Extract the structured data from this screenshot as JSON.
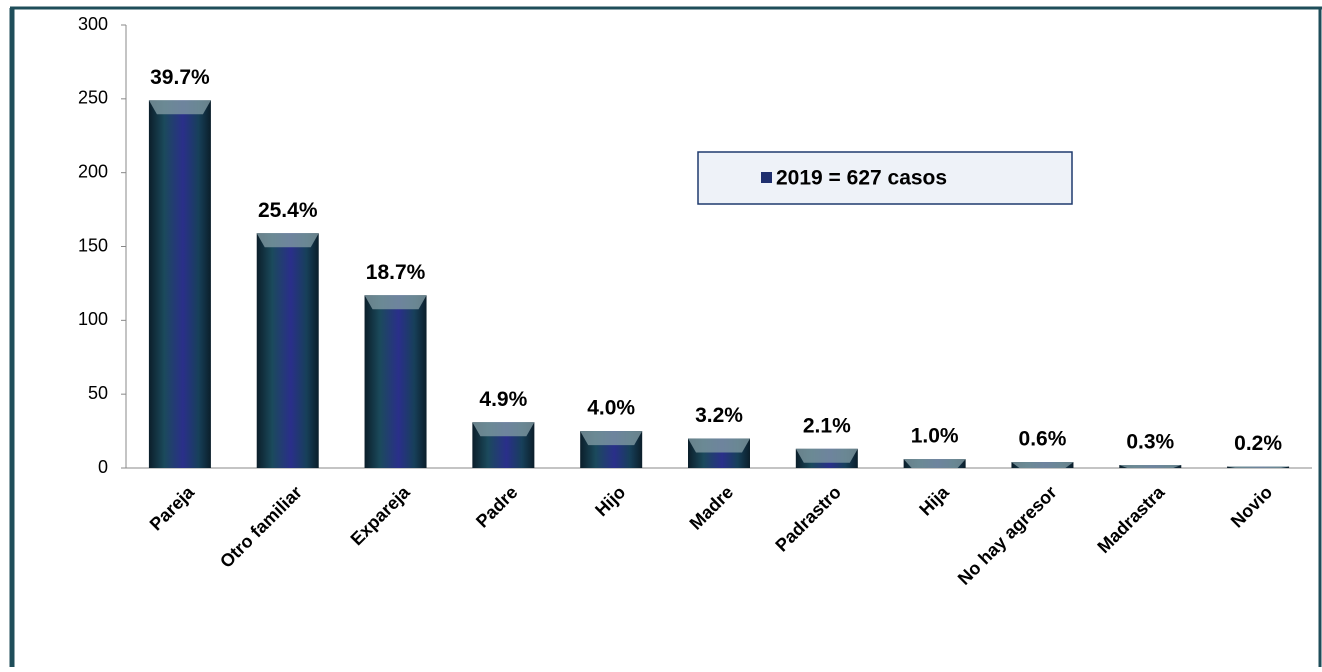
{
  "chart_data": {
    "type": "bar",
    "categories": [
      "Pareja",
      "Otro familiar",
      "Expareja",
      "Padre",
      "Hijo",
      "Madre",
      "Padrastro",
      "Hija",
      "No hay agresor",
      "Madrastra",
      "Novio"
    ],
    "series": [
      {
        "name": "2019 =  627 casos",
        "color": "#1f2f6e",
        "values": [
          249,
          159,
          117,
          31,
          25,
          20,
          13,
          6,
          4,
          2,
          1
        ],
        "value_labels": [
          "39.7%",
          "25.4%",
          "18.7%",
          "4.9%",
          "4.0%",
          "3.2%",
          "2.1%",
          "1.0%",
          "0.6%",
          "0.3%",
          "0.2%"
        ]
      }
    ],
    "ylim": [
      0,
      300
    ],
    "yticks": [
      0,
      50,
      100,
      150,
      200,
      250,
      300
    ],
    "grid": false,
    "legend": "top-right"
  }
}
